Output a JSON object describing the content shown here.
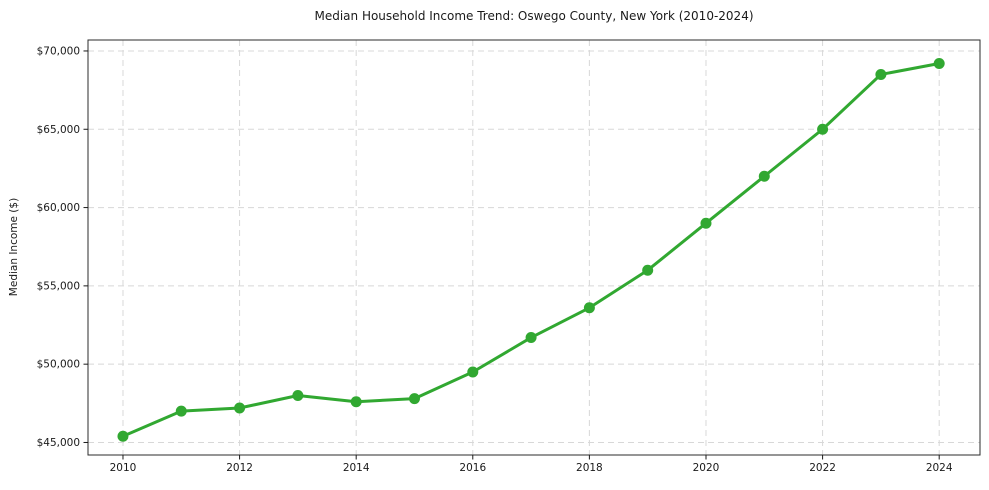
{
  "chart_data": {
    "type": "line",
    "title": "Median Household Income Trend: Oswego County, New York (2010-2024)",
    "xlabel": "",
    "ylabel": "Median Income ($)",
    "series": [
      {
        "name": "Median household income",
        "x": [
          2010,
          2011,
          2012,
          2013,
          2014,
          2015,
          2016,
          2017,
          2018,
          2019,
          2020,
          2021,
          2022,
          2023,
          2024
        ],
        "values": [
          45400,
          47000,
          47200,
          48000,
          47600,
          47800,
          49500,
          51700,
          53600,
          56000,
          59000,
          62000,
          65000,
          68500,
          69200
        ]
      }
    ],
    "x_ticks": [
      2010,
      2012,
      2014,
      2016,
      2018,
      2020,
      2022,
      2024
    ],
    "x_tick_labels": [
      "2010",
      "2012",
      "2014",
      "2016",
      "2018",
      "2020",
      "2022",
      "2024"
    ],
    "y_ticks": [
      45000,
      50000,
      55000,
      60000,
      65000,
      70000
    ],
    "y_tick_labels": [
      "$45,000",
      "$50,000",
      "$55,000",
      "$60,000",
      "$65,000",
      "$70,000"
    ],
    "xlim": [
      2009.4,
      2024.7
    ],
    "ylim": [
      44200,
      70700
    ],
    "grid": true,
    "grid_style": "dashed",
    "legend_position": "none",
    "line_color": "#31a831",
    "marker": "circle",
    "marker_radius": 5.5,
    "line_width": 3,
    "grid_color": "#d8d8d8",
    "spine_color": "#2b2b2b",
    "tick_color": "#1a1a1a"
  }
}
